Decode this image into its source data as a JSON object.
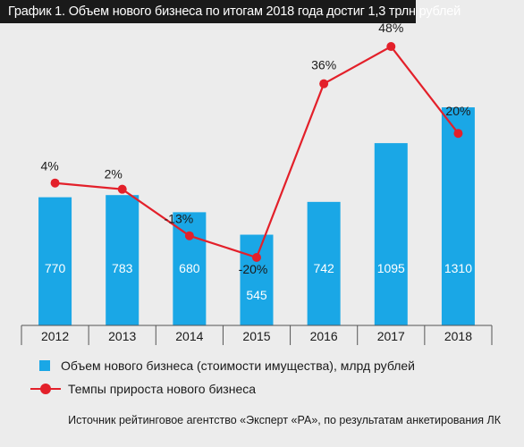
{
  "title": "График 1. Объем нового бизнеса по итогам 2018 года достиг 1,3 трлн рублей",
  "source": "Источник рейтинговое агентство «Эксперт «РА», по результатам анкетирования ЛК",
  "colors": {
    "bar": "#1aa7e6",
    "line": "#e3202a",
    "title_bg": "#1a1a1a",
    "background": "#ececec"
  },
  "chart_data": {
    "type": "bar",
    "categories": [
      "2012",
      "2013",
      "2014",
      "2015",
      "2016",
      "2017",
      "2018"
    ],
    "series": [
      {
        "name": "Объем нового бизнеса (стоимости имущества), млрд рублей",
        "type": "bar",
        "values": [
          770,
          783,
          680,
          545,
          742,
          1095,
          1310
        ],
        "labels": [
          "770",
          "783",
          "680",
          "545",
          "742",
          "1095",
          "1310"
        ]
      },
      {
        "name": "Темпы прироста нового бизнеса",
        "type": "line",
        "values": [
          4,
          2,
          -13,
          -20,
          36,
          48,
          20
        ],
        "labels": [
          "4%",
          "2%",
          "-13%",
          "-20%",
          "36%",
          "48%",
          "20%"
        ]
      }
    ],
    "legend": "bottom-left",
    "grid": false
  }
}
